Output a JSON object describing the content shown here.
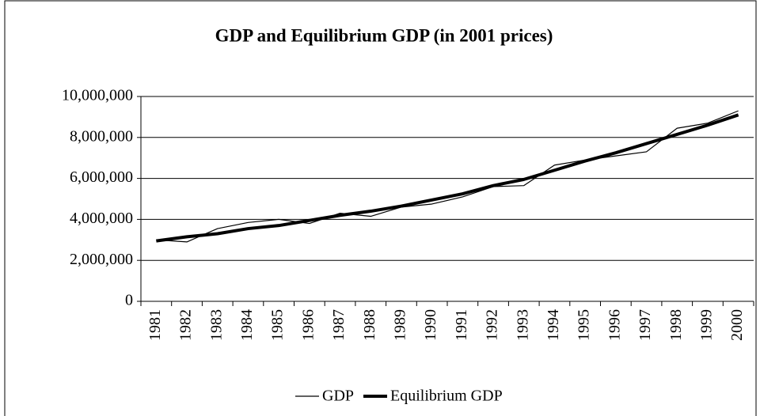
{
  "chart_data": {
    "type": "line",
    "title": "GDP and Equilibrium GDP (in 2001 prices)",
    "categories": [
      "1981",
      "1982",
      "1983",
      "1984",
      "1985",
      "1986",
      "1987",
      "1988",
      "1989",
      "1990",
      "1991",
      "1992",
      "1993",
      "1994",
      "1995",
      "1996",
      "1997",
      "1998",
      "1999",
      "2000"
    ],
    "series": [
      {
        "name": "GDP",
        "color": "#000000",
        "values": [
          3000000,
          2900000,
          3550000,
          3850000,
          4000000,
          3800000,
          4300000,
          4150000,
          4600000,
          4750000,
          5100000,
          5600000,
          5650000,
          6650000,
          6900000,
          7100000,
          7300000,
          8450000,
          8700000,
          9300000
        ]
      },
      {
        "name": "Equilibrium GDP",
        "color": "#000000",
        "values": [
          2950000,
          3150000,
          3300000,
          3550000,
          3700000,
          3950000,
          4200000,
          4400000,
          4650000,
          4950000,
          5250000,
          5650000,
          5950000,
          6400000,
          6850000,
          7250000,
          7700000,
          8150000,
          8600000,
          9100000
        ]
      }
    ],
    "ylim": [
      0,
      10000000
    ],
    "yticks": [
      0,
      {
        "value": 2000000,
        "label": "2,000,000"
      },
      {
        "value": 4000000,
        "label": "4,000,000"
      },
      {
        "value": 6000000,
        "label": "6,000,000"
      },
      {
        "value": 8000000,
        "label": "8,000,000"
      },
      {
        "value": 10000000,
        "label": "10,000,000"
      }
    ],
    "grid": true,
    "legend": "bottom"
  }
}
